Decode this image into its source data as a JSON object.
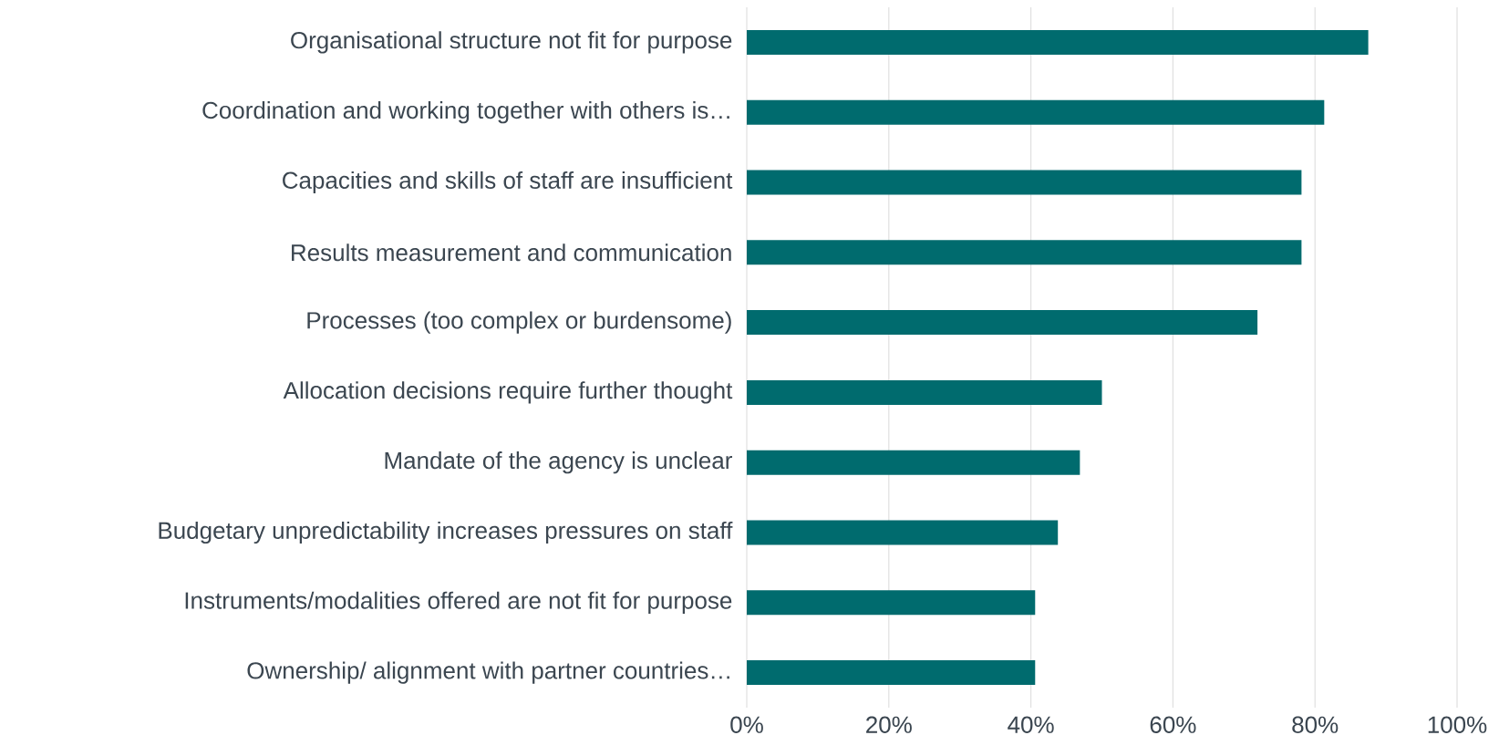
{
  "chart_data": {
    "type": "bar",
    "orientation": "horizontal",
    "categories": [
      "Organisational structure not fit for purpose",
      "Coordination and working together with others is…",
      "Capacities and skills of staff are insufficient",
      "Results measurement and communication",
      "Processes (too complex or burdensome)",
      "Allocation decisions require further thought",
      "Mandate of the agency is unclear",
      "Budgetary unpredictability increases pressures on staff",
      "Instruments/modalities offered are not fit for purpose",
      "Ownership/ alignment with partner countries…"
    ],
    "values": [
      87.5,
      81.3,
      78.1,
      78.1,
      71.9,
      50,
      46.9,
      43.8,
      40.6,
      40.6
    ],
    "color": "#006b6e",
    "xlim": [
      0,
      100
    ],
    "xticks": [
      {
        "value": 0,
        "label": "0%"
      },
      {
        "value": 20,
        "label": "20%"
      },
      {
        "value": 40,
        "label": "40%"
      },
      {
        "value": 60,
        "label": "60%"
      },
      {
        "value": 80,
        "label": "80%"
      },
      {
        "value": 100,
        "label": "100%"
      }
    ],
    "grid": "x"
  }
}
